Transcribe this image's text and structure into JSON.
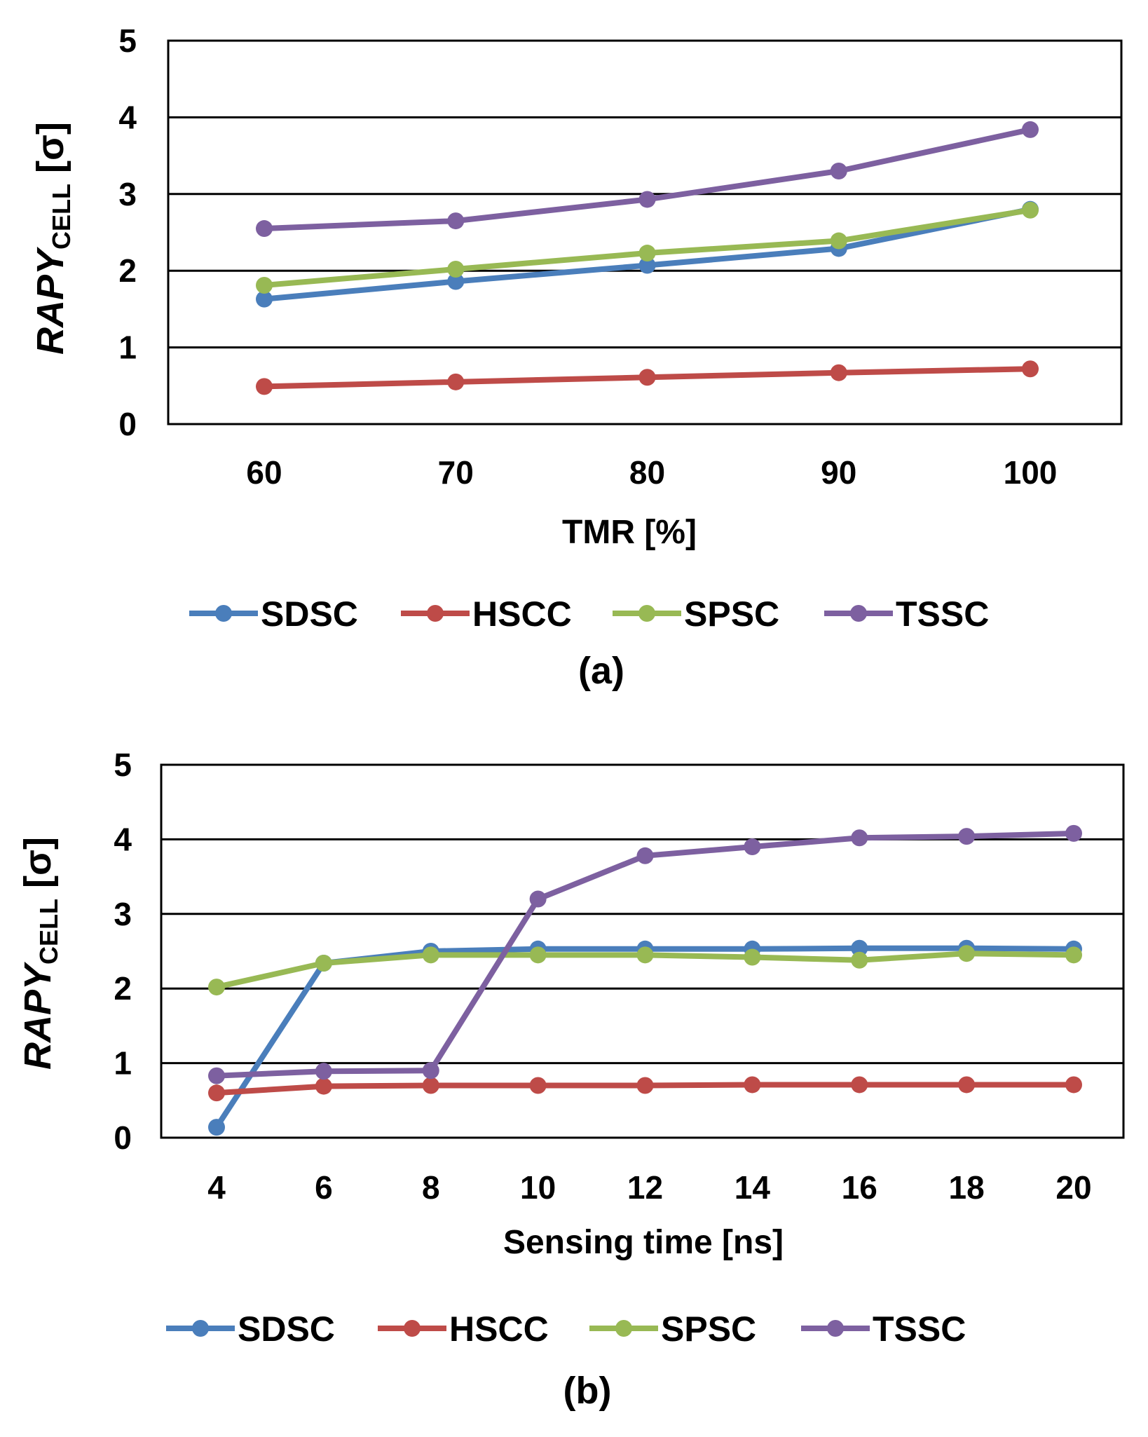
{
  "chart_data": [
    {
      "type": "line",
      "panel_label": "(a)",
      "xlabel": "TMR [%]",
      "ylabel": {
        "main": "RAPY",
        "sub": "CELL",
        "unit": " [σ]"
      },
      "categories": [
        "60",
        "70",
        "80",
        "90",
        "100"
      ],
      "ylim": [
        0,
        5
      ],
      "yticks": [
        "0",
        "1",
        "2",
        "3",
        "4",
        "5"
      ],
      "grid": true,
      "legend": "bottom",
      "series": [
        {
          "name": "SDSC",
          "color": "#4a7ebb",
          "values": [
            1.63,
            1.86,
            2.07,
            2.29,
            2.8
          ]
        },
        {
          "name": "HSCC",
          "color": "#be4b48",
          "values": [
            0.49,
            0.55,
            0.61,
            0.67,
            0.72
          ]
        },
        {
          "name": "SPSC",
          "color": "#98b954",
          "values": [
            1.81,
            2.02,
            2.23,
            2.39,
            2.79
          ]
        },
        {
          "name": "TSSC",
          "color": "#7d60a0",
          "values": [
            2.55,
            2.65,
            2.93,
            3.3,
            3.84
          ]
        }
      ]
    },
    {
      "type": "line",
      "panel_label": "(b)",
      "xlabel": "Sensing time [ns]",
      "ylabel": {
        "main": "RAPY",
        "sub": "CELL",
        "unit": " [σ]"
      },
      "categories": [
        "4",
        "6",
        "8",
        "10",
        "12",
        "14",
        "16",
        "18",
        "20"
      ],
      "ylim": [
        0,
        5
      ],
      "yticks": [
        "0",
        "1",
        "2",
        "3",
        "4",
        "5"
      ],
      "grid": true,
      "legend": "bottom",
      "series": [
        {
          "name": "SDSC",
          "color": "#4a7ebb",
          "values": [
            0.14,
            2.34,
            2.5,
            2.53,
            2.53,
            2.53,
            2.54,
            2.54,
            2.53
          ]
        },
        {
          "name": "HSCC",
          "color": "#be4b48",
          "values": [
            0.6,
            0.69,
            0.7,
            0.7,
            0.7,
            0.71,
            0.71,
            0.71,
            0.71
          ]
        },
        {
          "name": "SPSC",
          "color": "#98b954",
          "values": [
            2.02,
            2.34,
            2.45,
            2.45,
            2.45,
            2.42,
            2.38,
            2.47,
            2.45
          ]
        },
        {
          "name": "TSSC",
          "color": "#7d60a0",
          "values": [
            0.83,
            0.89,
            0.9,
            3.2,
            3.78,
            3.9,
            4.02,
            4.04,
            4.08
          ]
        }
      ]
    }
  ]
}
